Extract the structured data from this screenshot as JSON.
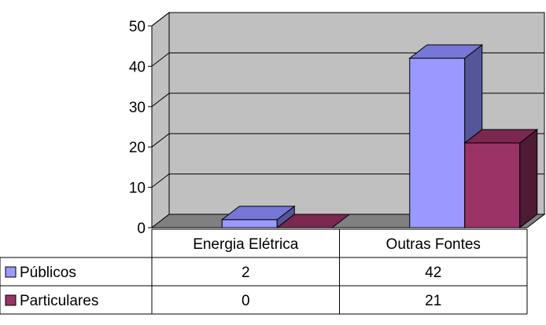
{
  "chart_data": {
    "type": "bar",
    "categories": [
      "Energia Elétrica",
      "Outras Fontes"
    ],
    "series": [
      {
        "name": "Públicos",
        "values": [
          2,
          42
        ],
        "color": "#9999FF",
        "top_color": "#7777D8",
        "side_color": "#55559A"
      },
      {
        "name": "Particulares",
        "values": [
          0,
          21
        ],
        "color": "#993366",
        "top_color": "#7A2850",
        "side_color": "#4E1A34"
      }
    ],
    "ylim": [
      0,
      50
    ],
    "yticks": [
      0,
      10,
      20,
      30,
      40,
      50
    ],
    "grid": true,
    "legend": "data-table",
    "wall_color": "#C0C0C0",
    "floor_color": "#808080",
    "title": "",
    "xlabel": "",
    "ylabel": ""
  }
}
